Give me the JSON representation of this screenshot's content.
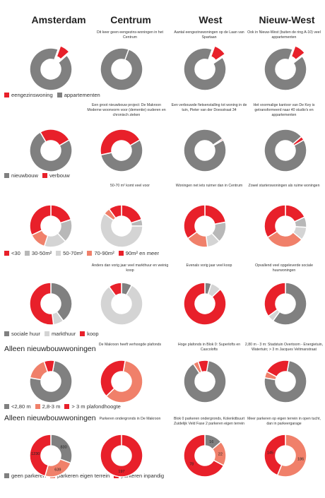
{
  "colors": {
    "red": "#e8202a",
    "grey": "#808080",
    "salmon": "#f0806a",
    "lightgrey": "#d4d4d4",
    "midgrey": "#b8b8b8",
    "white": "#ffffff"
  },
  "columns": [
    "Amsterdam",
    "Centrum",
    "West",
    "Nieuw-West"
  ],
  "notes": {
    "r1": [
      "",
      "Dit keer geen eengezins-woningen in het Centrum",
      "Aantal eengezinswoningen op de Laan van Spartaan",
      "Ook in Nieuw-West (buiten de ring A-10) veel appartementen"
    ],
    "r2": [
      "",
      "Een groot nieuwbouw project: De Makroon Moderne woonvorm voor (dementie) ouderen en chronisch zieken",
      "Een verbouwde fietsenstalling tot woning in de tuin, Pieter van der Doesstraat 34",
      "Het voormalige kantoor van De Key is getransformeerd naar 40 studio's en appartementen"
    ],
    "r3": [
      "",
      "50-70 m² komt veel voor",
      "Woningen net iets ruimer dan in Centrum",
      "Zowel starterswoningen als ruime woningen"
    ],
    "r4": [
      "",
      "Anders dan vorig jaar veel markthuur en weinig koop",
      "Evenals vorig jaar veel koop",
      "Opvallend veel opgeleverde sociale huurwoningen"
    ],
    "r5": [
      "",
      "De Makroon heeft verhoogde plafonds",
      "Hoge plafonds in Blok 0: Superlofts en Cascolofts",
      "2,80 m - 3 m: Stadstuin Overtoom - Energietuin, Watertuin; > 3 m Jacques Veltmanstraat"
    ],
    "r6": [
      "",
      "Parkeren ondergronds in De Makroon",
      "Blok 0 parkeren ondergronds, Kolenkitbuurt Zuidelijk Veld Fase 2 parkeren eigen terrein",
      "Meer parkeren op eigen terrein in open tucht, dan in parkeergarage"
    ]
  },
  "section_titles": {
    "r5": "Alleen nieuwbouwwoningen",
    "r6": "Alleen nieuwbouwwoningen"
  },
  "legends": {
    "r1": [
      {
        "label": "eengezinswoning",
        "color": "red"
      },
      {
        "label": "appartementen",
        "color": "grey"
      }
    ],
    "r2": [
      {
        "label": "nieuwbouw",
        "color": "grey"
      },
      {
        "label": "verbouw",
        "color": "red"
      }
    ],
    "r3": [
      {
        "label": "<30",
        "color": "red"
      },
      {
        "label": "30-50m²",
        "color": "midgrey"
      },
      {
        "label": "50-70m²",
        "color": "lightgrey"
      },
      {
        "label": "70-90m²",
        "color": "salmon"
      },
      {
        "label": "90m² en meer",
        "color": "red"
      }
    ],
    "r4": [
      {
        "label": "sociale huur",
        "color": "grey"
      },
      {
        "label": "markthuur",
        "color": "lightgrey"
      },
      {
        "label": "koop",
        "color": "red"
      }
    ],
    "r5": [
      {
        "label": "<2,80 m",
        "color": "grey"
      },
      {
        "label": "2,8-3 m",
        "color": "salmon"
      },
      {
        "label": "> 3 m plafondhoogte",
        "color": "red"
      }
    ],
    "r6": [
      {
        "label": "geen parkeren",
        "color": "grey"
      },
      {
        "label": "parkeren eigen terrein",
        "color": "salmon"
      },
      {
        "label": "parkeren inpandig",
        "color": "red"
      }
    ]
  },
  "chart_data": [
    {
      "type": "pie",
      "row": "eengezinswoning/appartementen",
      "columns": [
        "Amsterdam",
        "Centrum",
        "West",
        "Nieuw-West"
      ],
      "series": [
        {
          "name": "eengezinswoning",
          "values": [
            8,
            0,
            10,
            9
          ]
        },
        {
          "name": "appartementen",
          "values": [
            92,
            100,
            90,
            91
          ]
        }
      ]
    },
    {
      "type": "pie",
      "row": "nieuwbouw/verbouw",
      "columns": [
        "Amsterdam",
        "Centrum",
        "West",
        "Nieuw-West"
      ],
      "series": [
        {
          "name": "nieuwbouw",
          "values": [
            75,
            55,
            99,
            97
          ]
        },
        {
          "name": "verbouw",
          "values": [
            25,
            45,
            1,
            3
          ]
        }
      ]
    },
    {
      "type": "pie",
      "row": "oppervlakte",
      "columns": [
        "Amsterdam",
        "Centrum",
        "West",
        "Nieuw-West"
      ],
      "series": [
        {
          "name": "<30",
          "values": [
            20,
            20,
            22,
            18
          ]
        },
        {
          "name": "30-50m²",
          "values": [
            18,
            5,
            16,
            8
          ]
        },
        {
          "name": "50-70m²",
          "values": [
            17,
            60,
            10,
            10
          ]
        },
        {
          "name": "70-90m²",
          "values": [
            13,
            5,
            17,
            30
          ]
        },
        {
          "name": "90m² en meer",
          "values": [
            32,
            10,
            35,
            34
          ]
        }
      ]
    },
    {
      "type": "pie",
      "row": "eigendom",
      "columns": [
        "Amsterdam",
        "Centrum",
        "West",
        "Nieuw-West"
      ],
      "series": [
        {
          "name": "sociale huur",
          "values": [
            40,
            8,
            5,
            60
          ]
        },
        {
          "name": "markthuur",
          "values": [
            8,
            82,
            8,
            5
          ]
        },
        {
          "name": "koop",
          "values": [
            52,
            10,
            87,
            35
          ]
        }
      ]
    },
    {
      "type": "pie",
      "row": "plafondhoogte (alleen nieuwbouw)",
      "columns": [
        "Amsterdam",
        "Centrum",
        "West",
        "Nieuw-West"
      ],
      "series": [
        {
          "name": "<2,80 m",
          "values": [
            75,
            0,
            88,
            75
          ]
        },
        {
          "name": "2,8-3 m",
          "values": [
            17,
            60,
            4,
            5
          ]
        },
        {
          "name": "> 3 m plafondhoogte",
          "values": [
            8,
            40,
            8,
            20
          ]
        }
      ]
    },
    {
      "type": "pie",
      "row": "parkeren (alleen nieuwbouw)",
      "columns": [
        "Amsterdam",
        "Centrum",
        "West",
        "Nieuw-West"
      ],
      "series": [
        {
          "name": "geen parkeren",
          "values": [
            830,
            0,
            16,
            0
          ]
        },
        {
          "name": "parkeren eigen terrein",
          "values": [
            639,
            0,
            22,
            186
          ]
        },
        {
          "name": "parkeren inpandig",
          "values": [
            1230,
            197,
            78,
            145
          ]
        }
      ],
      "labels": [
        [
          "830",
          "639",
          "1230"
        ],
        [
          "",
          "",
          "197"
        ],
        [
          "16",
          "22",
          "78"
        ],
        [
          "",
          "186",
          "145"
        ]
      ]
    }
  ]
}
